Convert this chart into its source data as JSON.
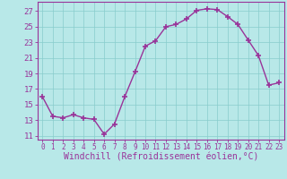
{
  "x": [
    0,
    1,
    2,
    3,
    4,
    5,
    6,
    7,
    8,
    9,
    10,
    11,
    12,
    13,
    14,
    15,
    16,
    17,
    18,
    19,
    20,
    21,
    22,
    23
  ],
  "y": [
    16.0,
    13.5,
    13.3,
    13.7,
    13.3,
    13.1,
    11.2,
    12.5,
    16.0,
    19.2,
    22.5,
    23.2,
    25.0,
    25.3,
    26.0,
    27.1,
    27.3,
    27.2,
    26.3,
    25.3,
    23.3,
    21.3,
    17.5,
    17.8
  ],
  "line_color": "#993399",
  "marker": "+",
  "marker_size": 4,
  "bg_color": "#b8e8e8",
  "grid_color": "#88cccc",
  "xlabel": "Windchill (Refroidissement éolien,°C)",
  "ylabel_ticks": [
    11,
    13,
    15,
    17,
    19,
    21,
    23,
    25,
    27
  ],
  "xlim": [
    -0.5,
    23.5
  ],
  "ylim": [
    10.5,
    28.2
  ],
  "font_color": "#993399",
  "font_family": "monospace",
  "font_size_y": 6.5,
  "font_size_x": 5.5,
  "font_size_xlabel": 7.0,
  "lw": 1.0,
  "marker_lw": 1.2
}
